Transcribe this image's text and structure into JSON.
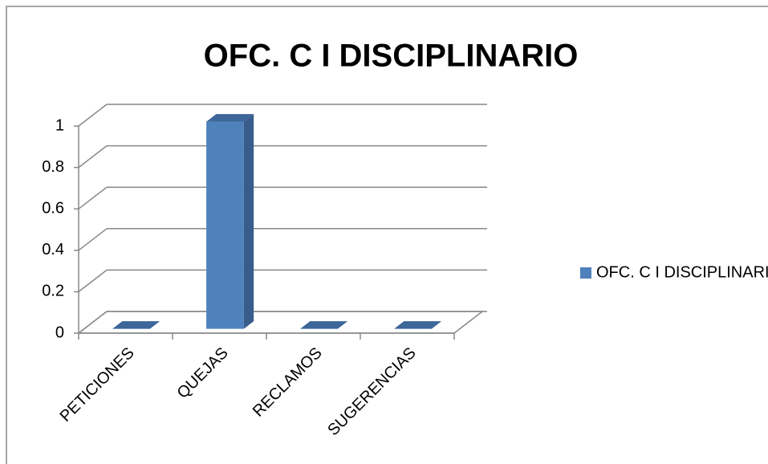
{
  "chart_data": {
    "type": "bar3d",
    "title": "OFC. C I DISCIPLINARIO",
    "categories": [
      "PETICIONES",
      "QUEJAS",
      "RECLAMOS",
      "SUGERENCIAS"
    ],
    "series": [
      {
        "name": "OFC. C I DISCIPLINARIO",
        "color": "#4f81bd",
        "values": [
          0,
          1,
          0,
          0
        ]
      }
    ],
    "ylim": [
      0,
      1
    ],
    "yticks": [
      0,
      0.2,
      0.4,
      0.6,
      0.8,
      1
    ],
    "grid": true,
    "legend": "right"
  }
}
